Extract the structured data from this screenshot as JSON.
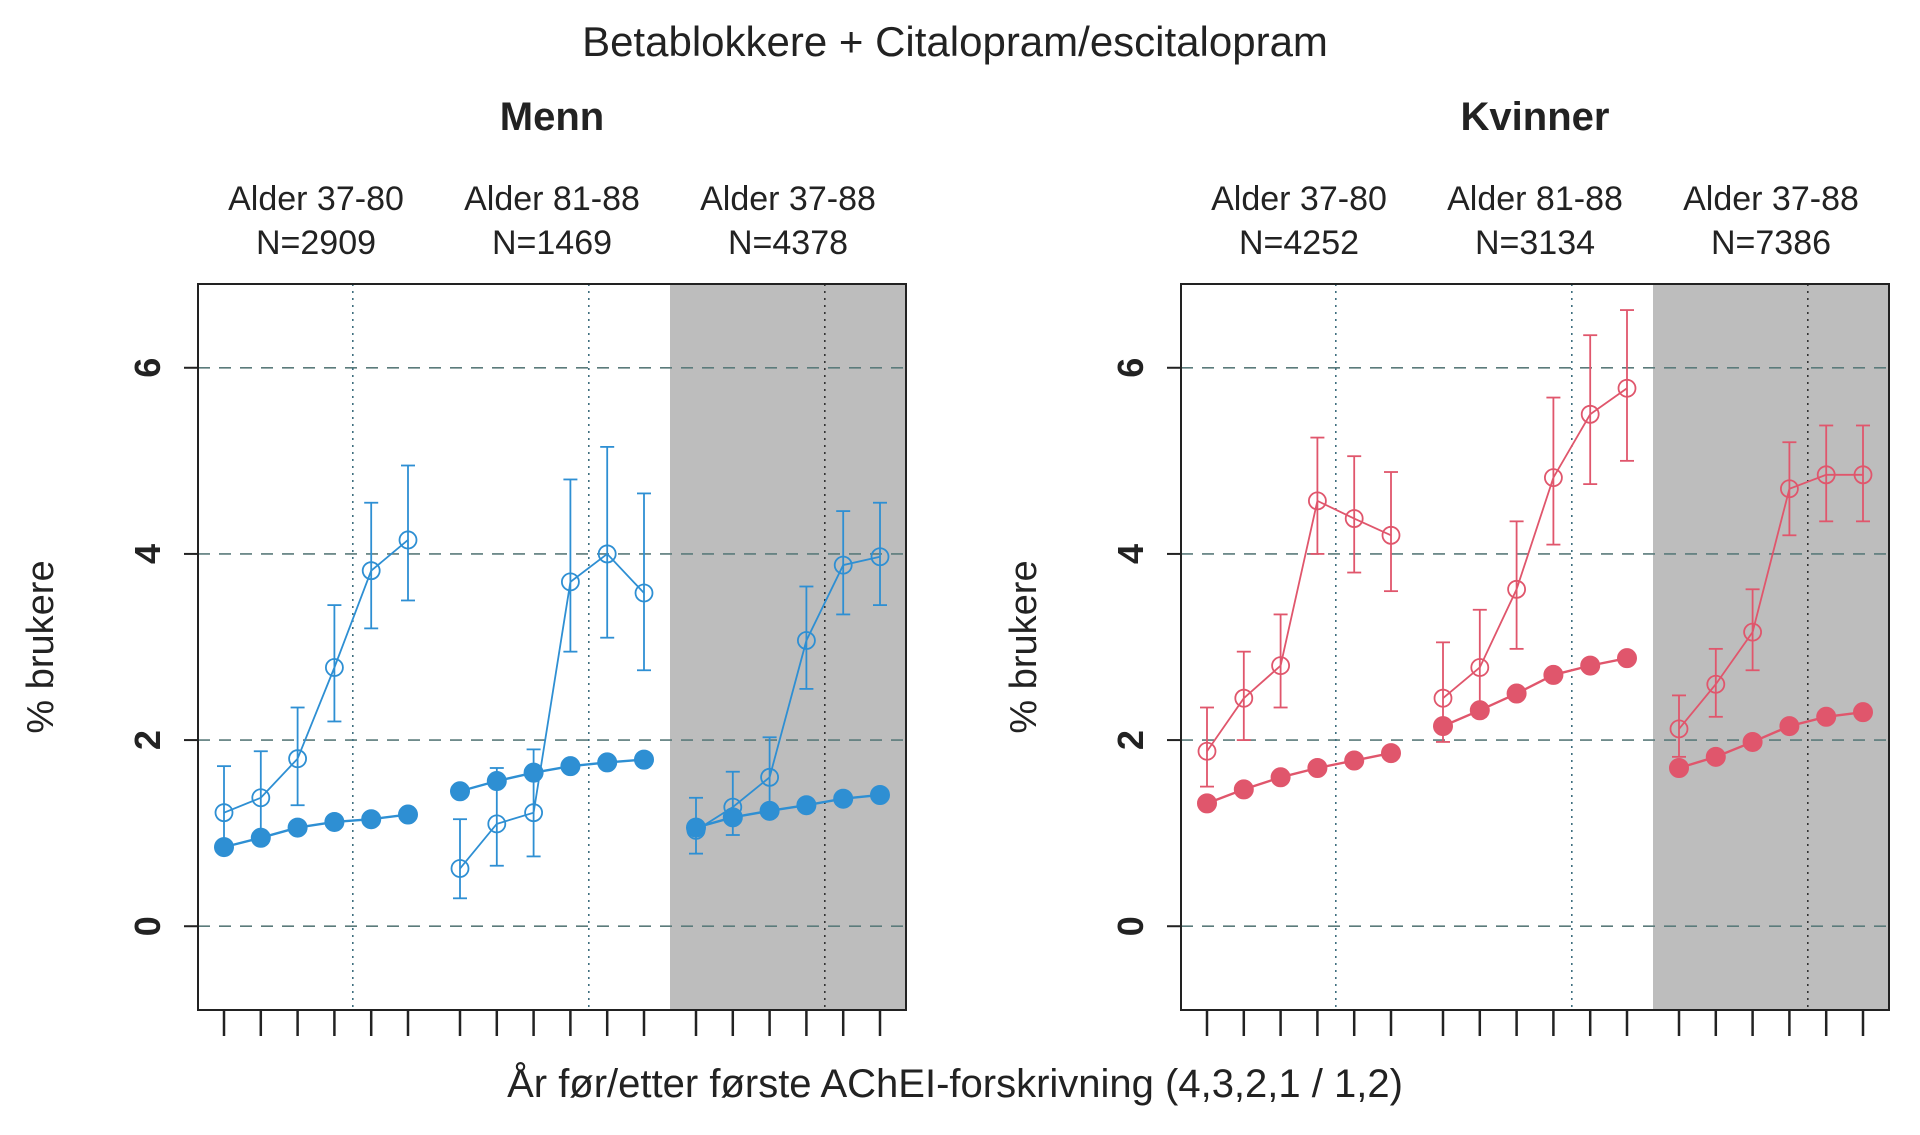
{
  "chart_data": {
    "type": "line",
    "title": "Betablokkere + Citalopram/escitalopram",
    "xlabel": "År før/etter første AChEI-forskrivning (4,3,2,1 / 1,2)",
    "ylabel": "% brukere",
    "ylim": [
      -0.9,
      6.9
    ],
    "yticks": [
      "0",
      "2",
      "4",
      "6"
    ],
    "x": [
      "-4",
      "-3",
      "-2",
      "-1",
      "1",
      "2"
    ],
    "colors": {
      "Menn": "#2e8fd3",
      "Kvinner": "#e0566c",
      "shade": "#bdbdbd"
    },
    "panels": [
      {
        "name": "Menn",
        "groups": [
          {
            "age": "Alder 37-80",
            "n": "N=2909",
            "shaded": false,
            "series": [
              {
                "name": "Betablokkere + Citalopram/escitalopram",
                "marker": "open",
                "values": [
                  1.22,
                  1.38,
                  1.8,
                  2.78,
                  3.82,
                  4.15
                ],
                "lower": [
                  0.8,
                  0.9,
                  1.3,
                  2.2,
                  3.2,
                  3.5
                ],
                "upper": [
                  1.72,
                  1.88,
                  2.35,
                  3.45,
                  4.55,
                  4.95
                ]
              },
              {
                "name": "Betablokkere",
                "marker": "filled",
                "values": [
                  0.85,
                  0.95,
                  1.06,
                  1.12,
                  1.15,
                  1.2
                ]
              }
            ]
          },
          {
            "age": "Alder 81-88",
            "n": "N=1469",
            "shaded": false,
            "series": [
              {
                "name": "Betablokkere + Citalopram/escitalopram",
                "marker": "open",
                "values": [
                  0.62,
                  1.1,
                  1.22,
                  3.7,
                  4.0,
                  3.58
                ],
                "lower": [
                  0.3,
                  0.65,
                  0.75,
                  2.95,
                  3.1,
                  2.75
                ],
                "upper": [
                  1.15,
                  1.7,
                  1.9,
                  4.8,
                  5.15,
                  4.65
                ]
              },
              {
                "name": "Betablokkere",
                "marker": "filled",
                "values": [
                  1.45,
                  1.56,
                  1.65,
                  1.72,
                  1.76,
                  1.79
                ]
              }
            ]
          },
          {
            "age": "Alder 37-88",
            "n": "N=4378",
            "shaded": true,
            "series": [
              {
                "name": "Betablokkere + Citalopram/escitalopram",
                "marker": "open",
                "values": [
                  1.03,
                  1.28,
                  1.6,
                  3.07,
                  3.88,
                  3.97
                ],
                "lower": [
                  0.78,
                  0.98,
                  1.2,
                  2.55,
                  3.35,
                  3.45
                ],
                "upper": [
                  1.38,
                  1.66,
                  2.03,
                  3.65,
                  4.46,
                  4.55
                ]
              },
              {
                "name": "Betablokkere",
                "marker": "filled",
                "values": [
                  1.06,
                  1.17,
                  1.24,
                  1.3,
                  1.37,
                  1.41
                ]
              }
            ]
          }
        ]
      },
      {
        "name": "Kvinner",
        "groups": [
          {
            "age": "Alder 37-80",
            "n": "N=4252",
            "shaded": false,
            "series": [
              {
                "name": "Betablokkere + Citalopram/escitalopram",
                "marker": "open",
                "values": [
                  1.88,
                  2.45,
                  2.8,
                  4.57,
                  4.38,
                  4.2
                ],
                "lower": [
                  1.5,
                  2.0,
                  2.35,
                  4.0,
                  3.8,
                  3.6
                ],
                "upper": [
                  2.35,
                  2.95,
                  3.35,
                  5.25,
                  5.05,
                  4.88
                ]
              },
              {
                "name": "Betablokkere",
                "marker": "filled",
                "values": [
                  1.32,
                  1.47,
                  1.6,
                  1.7,
                  1.78,
                  1.86
                ]
              }
            ]
          },
          {
            "age": "Alder 81-88",
            "n": "N=3134",
            "shaded": false,
            "series": [
              {
                "name": "Betablokkere + Citalopram/escitalopram",
                "marker": "open",
                "values": [
                  2.45,
                  2.78,
                  3.62,
                  4.82,
                  5.5,
                  5.78
                ],
                "lower": [
                  1.98,
                  2.25,
                  2.98,
                  4.1,
                  4.75,
                  5.0
                ],
                "upper": [
                  3.05,
                  3.4,
                  4.35,
                  5.68,
                  6.35,
                  6.62
                ]
              },
              {
                "name": "Betablokkere",
                "marker": "filled",
                "values": [
                  2.15,
                  2.32,
                  2.5,
                  2.7,
                  2.8,
                  2.88
                ]
              }
            ]
          },
          {
            "age": "Alder 37-88",
            "n": "N=7386",
            "shaded": true,
            "series": [
              {
                "name": "Betablokkere + Citalopram/escitalopram",
                "marker": "open",
                "values": [
                  2.12,
                  2.6,
                  3.16,
                  4.7,
                  4.85,
                  4.85
                ],
                "lower": [
                  1.82,
                  2.25,
                  2.75,
                  4.2,
                  4.35,
                  4.35
                ],
                "upper": [
                  2.48,
                  2.98,
                  3.62,
                  5.2,
                  5.38,
                  5.38
                ]
              },
              {
                "name": "Betablokkere",
                "marker": "filled",
                "values": [
                  1.7,
                  1.82,
                  1.98,
                  2.15,
                  2.25,
                  2.3
                ]
              }
            ]
          }
        ]
      }
    ]
  }
}
